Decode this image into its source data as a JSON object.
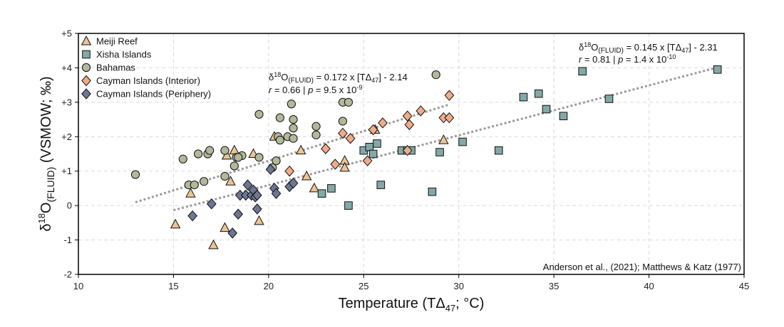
{
  "chart_data": {
    "type": "scatter",
    "xlabel": "Temperature (TΔ47; °C)",
    "ylabel": "δ18O(FLUID) (VSMOW; ‰)",
    "xlim": [
      10,
      45
    ],
    "ylim": [
      -2,
      5
    ],
    "x_ticks": [
      "10",
      "15",
      "20",
      "25",
      "30",
      "35",
      "40",
      "45"
    ],
    "y_ticks": [
      "-2",
      "-1",
      "0",
      "+1",
      "+2",
      "+3",
      "+4",
      "+5"
    ],
    "grid": true,
    "legend_position": "top-left",
    "source": "Anderson et al., (2021); Matthews & Katz (1977)",
    "series": [
      {
        "name": "Meiji Reef",
        "marker": "triangle",
        "color": "#ecc394",
        "points": [
          [
            15.1,
            -0.55
          ],
          [
            15.9,
            0.35
          ],
          [
            17.7,
            -0.65
          ],
          [
            17.8,
            1.45
          ],
          [
            18.0,
            0.7
          ],
          [
            17.1,
            -1.15
          ],
          [
            18.2,
            1.6
          ],
          [
            19.2,
            1.5
          ],
          [
            19.5,
            -0.45
          ],
          [
            20.3,
            2.0
          ],
          [
            21.7,
            1.6
          ],
          [
            22.0,
            0.85
          ],
          [
            22.4,
            0.5
          ],
          [
            24.0,
            1.3
          ],
          [
            24.0,
            1.1
          ],
          [
            25.6,
            2.2
          ],
          [
            29.2,
            1.9
          ]
        ]
      },
      {
        "name": "Xisha Islands",
        "marker": "square",
        "color": "#83a9a7",
        "points": [
          [
            22.8,
            0.35
          ],
          [
            23.3,
            0.5
          ],
          [
            24.2,
            0.0
          ],
          [
            25.0,
            1.6
          ],
          [
            25.3,
            1.7
          ],
          [
            25.5,
            1.5
          ],
          [
            25.7,
            1.8
          ],
          [
            25.9,
            0.6
          ],
          [
            27.0,
            1.6
          ],
          [
            27.3,
            1.6
          ],
          [
            27.5,
            1.6
          ],
          [
            28.6,
            0.4
          ],
          [
            29.0,
            1.55
          ],
          [
            30.2,
            1.85
          ],
          [
            32.1,
            1.6
          ],
          [
            33.4,
            3.15
          ],
          [
            34.2,
            3.25
          ],
          [
            34.6,
            2.8
          ],
          [
            35.5,
            2.6
          ],
          [
            36.5,
            3.9
          ],
          [
            37.9,
            3.1
          ],
          [
            43.6,
            3.95
          ]
        ]
      },
      {
        "name": "Bahamas",
        "marker": "circle",
        "color": "#b2b89a",
        "points": [
          [
            13.0,
            0.9
          ],
          [
            15.5,
            1.35
          ],
          [
            15.8,
            0.6
          ],
          [
            16.1,
            0.6
          ],
          [
            16.3,
            1.5
          ],
          [
            16.6,
            0.7
          ],
          [
            16.8,
            1.5
          ],
          [
            16.9,
            1.6
          ],
          [
            17.7,
            1.6
          ],
          [
            17.7,
            0.85
          ],
          [
            18.2,
            1.15
          ],
          [
            18.3,
            1.4
          ],
          [
            18.6,
            1.45
          ],
          [
            18.4,
            1.4
          ],
          [
            19.5,
            2.65
          ],
          [
            19.5,
            1.4
          ],
          [
            20.2,
            1.1
          ],
          [
            20.4,
            1.3
          ],
          [
            20.5,
            2.0
          ],
          [
            20.6,
            2.55
          ],
          [
            20.6,
            1.9
          ],
          [
            21.0,
            2.0
          ],
          [
            21.2,
            2.95
          ],
          [
            21.3,
            2.5
          ],
          [
            21.3,
            2.25
          ],
          [
            21.3,
            1.95
          ],
          [
            22.5,
            2.3
          ],
          [
            22.5,
            2.05
          ],
          [
            23.9,
            2.45
          ],
          [
            23.9,
            3.0
          ],
          [
            24.2,
            3.0
          ],
          [
            28.8,
            3.8
          ]
        ]
      },
      {
        "name": "Cayman Islands (Interior)",
        "marker": "diamond",
        "color": "#efab8a",
        "points": [
          [
            21.1,
            1.0
          ],
          [
            23.0,
            1.65
          ],
          [
            23.5,
            1.2
          ],
          [
            23.9,
            2.1
          ],
          [
            24.3,
            1.95
          ],
          [
            25.2,
            1.3
          ],
          [
            25.5,
            2.2
          ],
          [
            26.0,
            2.4
          ],
          [
            27.3,
            2.6
          ],
          [
            27.4,
            2.35
          ],
          [
            27.3,
            1.6
          ],
          [
            28.0,
            2.75
          ],
          [
            29.2,
            2.55
          ],
          [
            29.5,
            2.55
          ],
          [
            29.5,
            3.2
          ]
        ]
      },
      {
        "name": "Cayman Islands (Periphery)",
        "marker": "diamond",
        "color": "#6c7795",
        "points": [
          [
            16.0,
            -0.3
          ],
          [
            17.0,
            0.05
          ],
          [
            18.4,
            -0.25
          ],
          [
            18.5,
            0.3
          ],
          [
            18.8,
            0.3
          ],
          [
            18.9,
            0.6
          ],
          [
            19.1,
            0.3
          ],
          [
            19.2,
            0.45
          ],
          [
            19.3,
            0.25
          ],
          [
            19.4,
            0.3
          ],
          [
            19.4,
            -0.1
          ],
          [
            18.1,
            -0.8
          ],
          [
            20.1,
            1.05
          ],
          [
            20.3,
            0.5
          ],
          [
            20.4,
            0.35
          ],
          [
            21.1,
            0.55
          ],
          [
            21.3,
            0.65
          ]
        ]
      }
    ],
    "fits": [
      {
        "equation_main": "δ18O(FLUID) = 0.172 x [TΔ47] - 2.14",
        "stats": "r = 0.66 | p = 9.5 x 10-9",
        "x_range": [
          13.0,
          29.5
        ],
        "slope": 0.172,
        "intercept": -2.14
      },
      {
        "equation_main": "δ18O(FLUID) = 0.145 x [TΔ47] - 2.31",
        "stats": "r = 0.81 | p = 1.4 x 10-10",
        "x_range": [
          15.0,
          43.6
        ],
        "slope": 0.145,
        "intercept": -2.31
      }
    ]
  }
}
